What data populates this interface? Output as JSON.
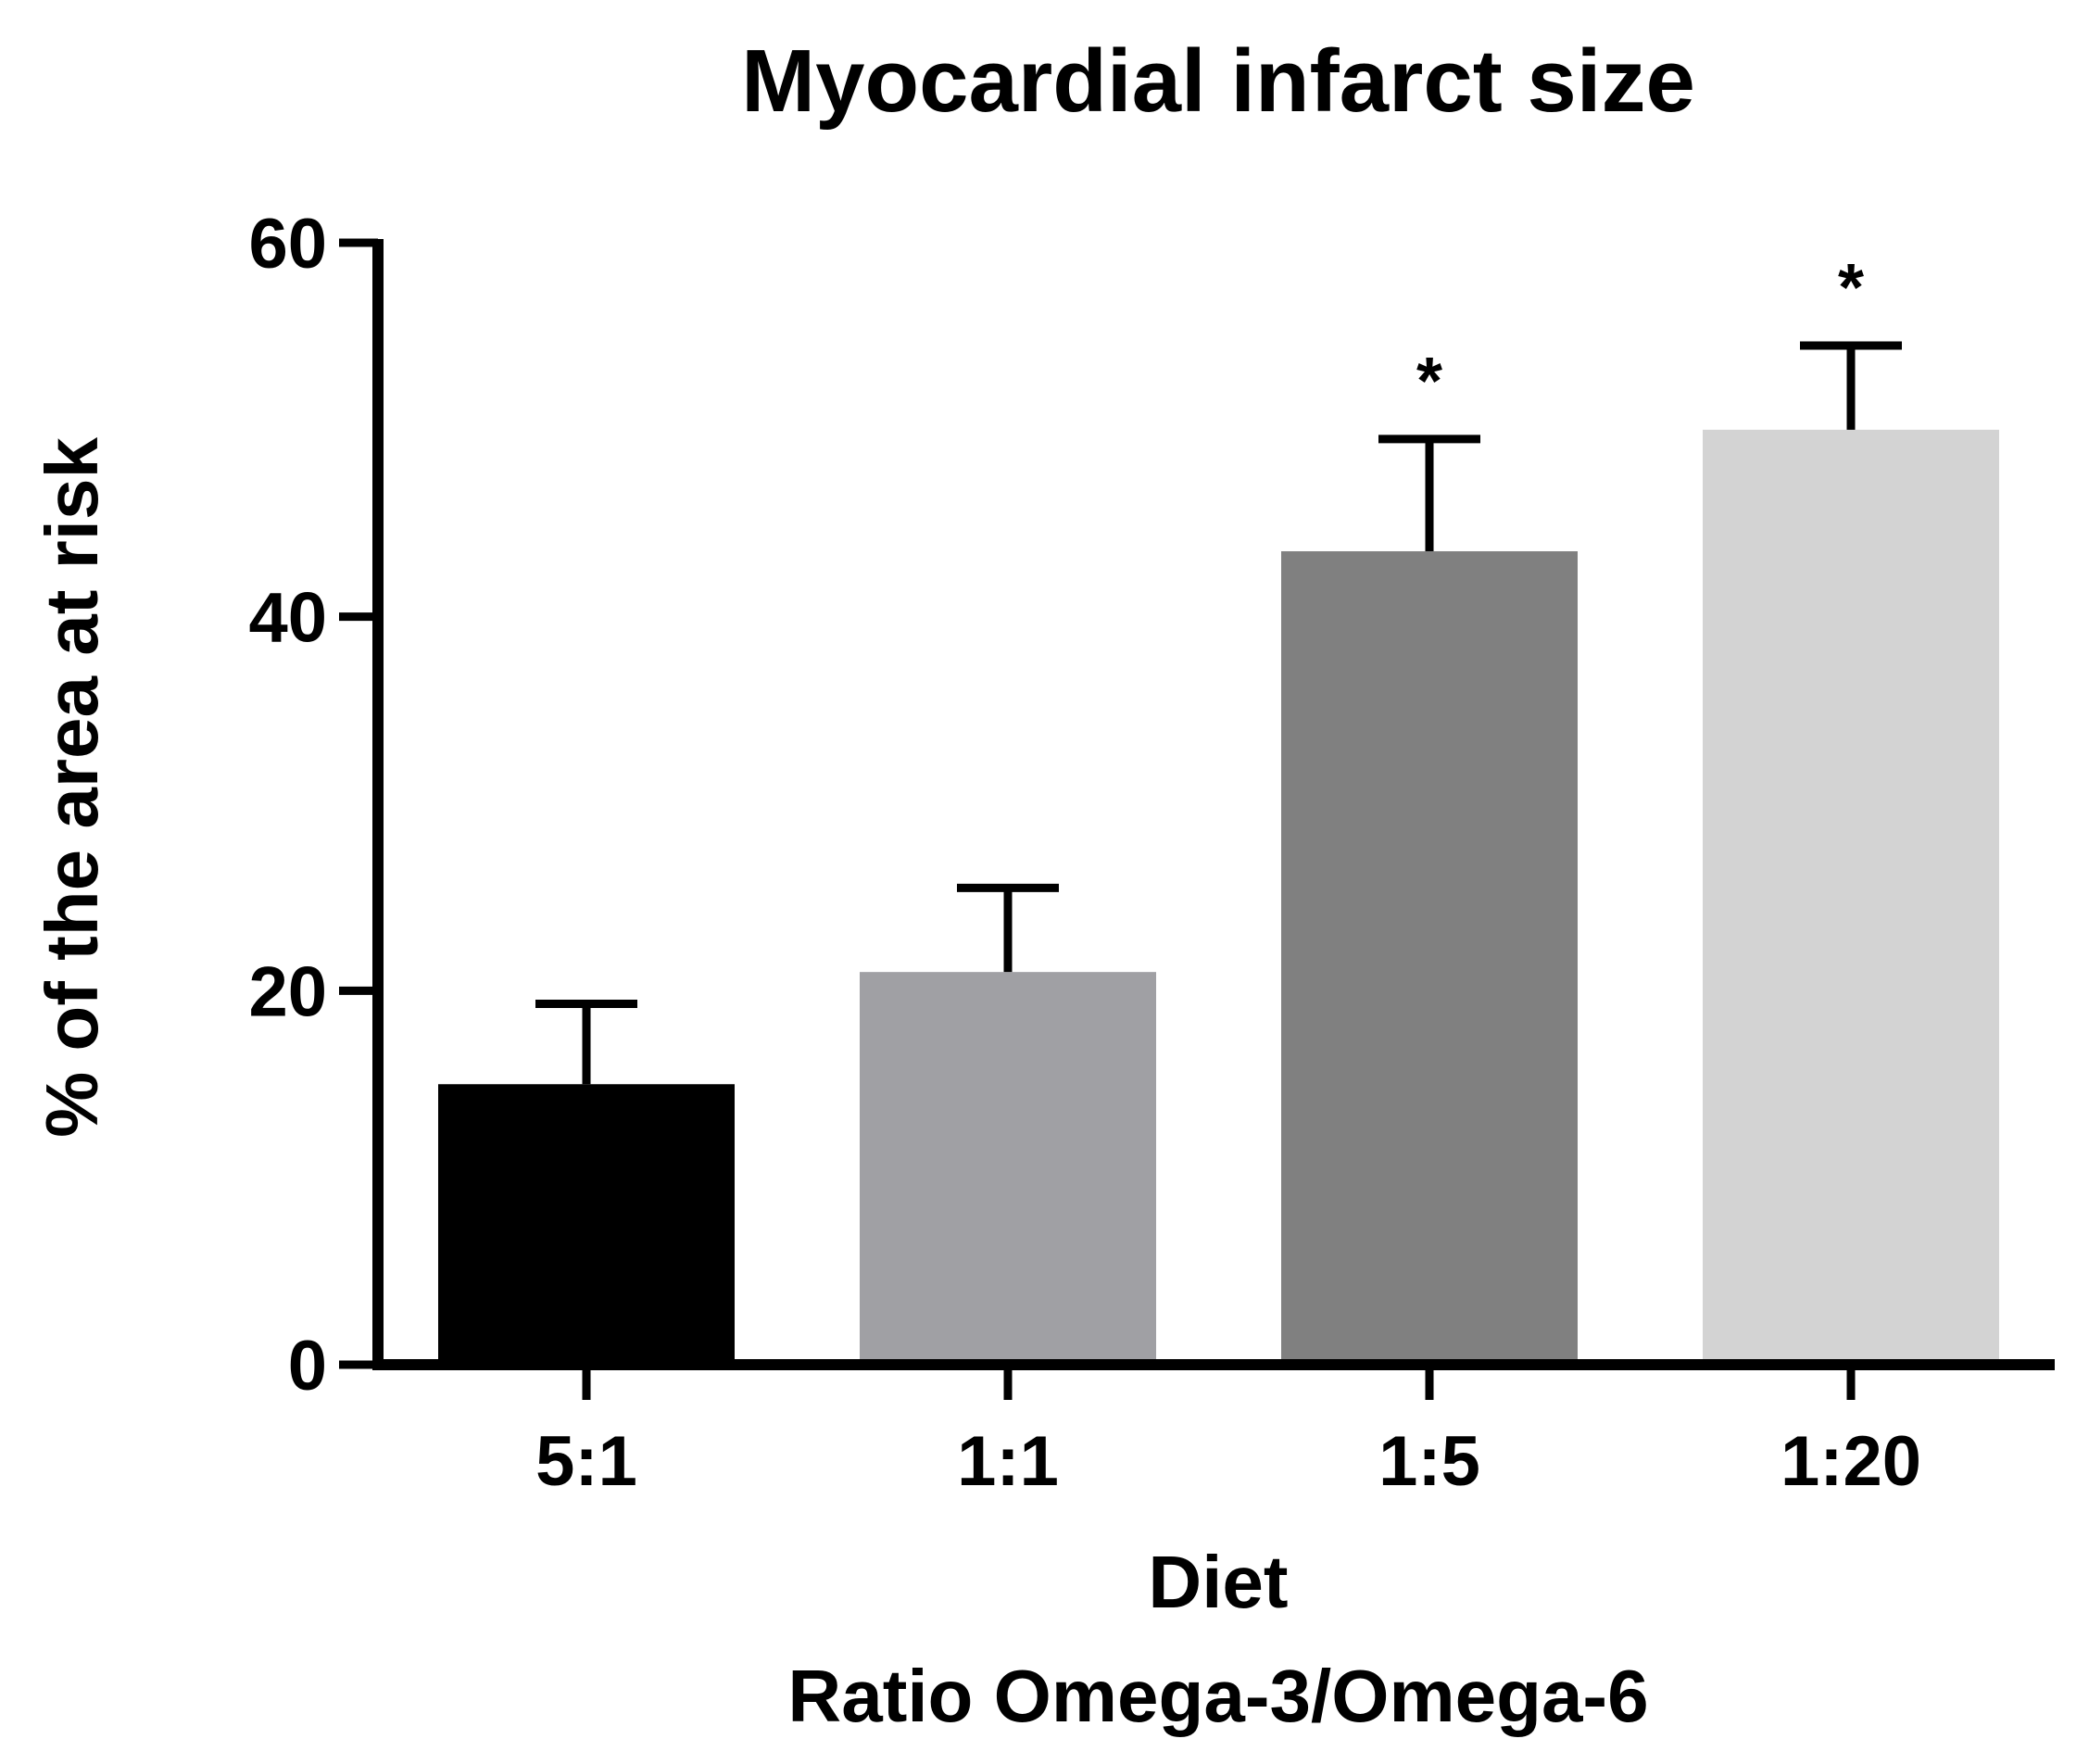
{
  "chart_data": {
    "type": "bar",
    "title": "Myocardial infarct size",
    "ylabel": "% of the area at risk",
    "xlabel": "Diet",
    "xlabel_line2": "Ratio Omega-3/Omega-6",
    "categories": [
      "5:1",
      "1:1",
      "1:5",
      "1:20"
    ],
    "values": [
      15,
      21,
      43.5,
      50
    ],
    "error_upper": [
      19.3,
      25.5,
      49.5,
      54.5
    ],
    "significance": [
      "",
      "",
      "*",
      "*"
    ],
    "colors": [
      "#000000",
      "#a0a0a4",
      "#808080",
      "#d3d3d3"
    ],
    "ylim": [
      0,
      60
    ],
    "yticks": [
      0,
      20,
      40,
      60
    ],
    "grid": false,
    "legend": "none"
  }
}
